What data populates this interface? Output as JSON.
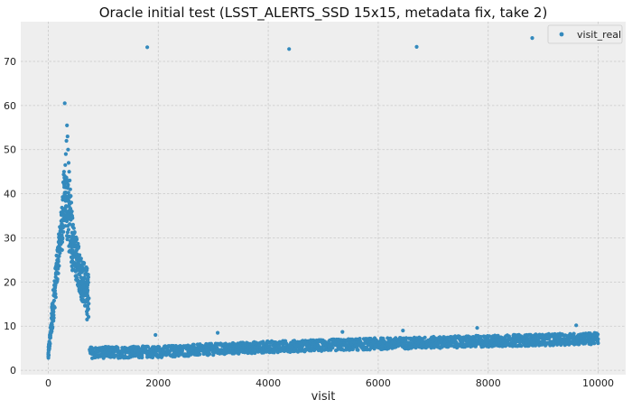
{
  "chart_data": {
    "type": "scatter",
    "title": "Oracle initial test (LSST_ALERTS_SSD 15x15, metadata fix, take 2)",
    "xlabel": "visit",
    "ylabel": "",
    "xlim": [
      -500,
      10500
    ],
    "ylim": [
      -1,
      79
    ],
    "x_ticks": [
      0,
      2000,
      4000,
      6000,
      8000,
      10000
    ],
    "y_ticks": [
      0,
      10,
      20,
      30,
      40,
      50,
      60,
      70
    ],
    "grid": true,
    "legend_position": "top-right",
    "colors": {
      "series": "#348abd",
      "plot_background": "#eeeeee",
      "grid": "#c9c9c9"
    },
    "series": [
      {
        "name": "visit_real",
        "marker": "dot",
        "points": [
          [
            0,
            3.2
          ],
          [
            10,
            4.5
          ],
          [
            20,
            6.0
          ],
          [
            35,
            7.5
          ],
          [
            50,
            9.0
          ],
          [
            70,
            11.5
          ],
          [
            90,
            14.0
          ],
          [
            110,
            17.0
          ],
          [
            130,
            19.5
          ],
          [
            150,
            22.0
          ],
          [
            170,
            24.5
          ],
          [
            190,
            27.0
          ],
          [
            210,
            29.0
          ],
          [
            230,
            31.5
          ],
          [
            250,
            34.0
          ],
          [
            270,
            36.5
          ],
          [
            280,
            39.0
          ],
          [
            290,
            41.5
          ],
          [
            300,
            44.0
          ],
          [
            310,
            46.5
          ],
          [
            320,
            49.0
          ],
          [
            330,
            52.0
          ],
          [
            340,
            55.5
          ],
          [
            350,
            53.0
          ],
          [
            360,
            50.0
          ],
          [
            370,
            47.0
          ],
          [
            380,
            45.0
          ],
          [
            390,
            43.0
          ],
          [
            400,
            41.0
          ],
          [
            410,
            39.5
          ],
          [
            420,
            38.0
          ],
          [
            430,
            36.0
          ],
          [
            440,
            34.5
          ],
          [
            450,
            33.0
          ],
          [
            460,
            31.0
          ],
          [
            470,
            29.5
          ],
          [
            480,
            28.0
          ],
          [
            500,
            26.5
          ],
          [
            520,
            25.0
          ],
          [
            540,
            24.0
          ],
          [
            560,
            23.0
          ],
          [
            580,
            22.0
          ],
          [
            600,
            21.0
          ],
          [
            620,
            20.0
          ],
          [
            640,
            19.0
          ],
          [
            660,
            18.0
          ],
          [
            680,
            17.0
          ],
          [
            700,
            16.0
          ],
          [
            720,
            14.0
          ],
          [
            300,
            60.5
          ],
          [
            1800,
            73.2
          ],
          [
            4380,
            72.8
          ],
          [
            6700,
            73.3
          ],
          [
            8800,
            75.3
          ],
          [
            1950,
            8.0
          ],
          [
            3080,
            8.5
          ],
          [
            5350,
            8.7
          ],
          [
            6450,
            9.0
          ],
          [
            7800,
            9.6
          ],
          [
            9600,
            10.2
          ]
        ],
        "trend": [
          {
            "visit": 0,
            "visit_real": 3.2
          },
          {
            "visit": 150,
            "visit_real": 22.0
          },
          {
            "visit": 300,
            "visit_real": 40.0
          },
          {
            "visit": 450,
            "visit_real": 28.0
          },
          {
            "visit": 600,
            "visit_real": 21.0
          },
          {
            "visit": 720,
            "visit_real": 18.0
          },
          {
            "visit": 750,
            "visit_real": 4.0
          },
          {
            "visit": 2000,
            "visit_real": 4.2
          },
          {
            "visit": 4000,
            "visit_real": 5.3
          },
          {
            "visit": 6000,
            "visit_real": 6.0
          },
          {
            "visit": 8000,
            "visit_real": 6.6
          },
          {
            "visit": 10000,
            "visit_real": 7.2
          }
        ]
      }
    ]
  }
}
